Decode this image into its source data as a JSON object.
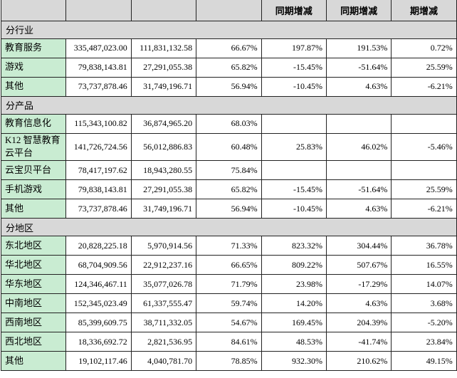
{
  "table": {
    "title": "revenue-breakdown-table",
    "header_cols": [
      "",
      "",
      "",
      "",
      "同期增减",
      "同期增减",
      "期增减"
    ],
    "colors": {
      "header_bg": "#d8d8d8",
      "section_bg": "#d8d8d8",
      "label_bg": "#c9ecd2",
      "border": "#222222"
    },
    "sections": [
      {
        "title": "分行业",
        "rows": [
          {
            "label": "教育服务",
            "values": [
              "335,487,023.00",
              "111,831,132.58",
              "66.67%",
              "197.87%",
              "191.53%",
              "0.72%"
            ]
          },
          {
            "label": "游戏",
            "values": [
              "79,838,143.81",
              "27,291,055.38",
              "65.82%",
              "-15.45%",
              "-51.64%",
              "25.59%"
            ]
          },
          {
            "label": "其他",
            "values": [
              "73,737,878.46",
              "31,749,196.71",
              "56.94%",
              "-10.45%",
              "4.63%",
              "-6.21%"
            ]
          }
        ]
      },
      {
        "title": "分产品",
        "rows": [
          {
            "label": "教育信息化",
            "values": [
              "115,343,100.82",
              "36,874,965.20",
              "68.03%",
              "",
              "",
              ""
            ]
          },
          {
            "label": "K12 智慧教育云平台",
            "values": [
              "141,726,724.56",
              "56,012,886.83",
              "60.48%",
              "25.83%",
              "46.02%",
              "-5.46%"
            ]
          },
          {
            "label": "云宝贝平台",
            "values": [
              "78,417,197.62",
              "18,943,280.55",
              "75.84%",
              "",
              "",
              ""
            ]
          },
          {
            "label": "手机游戏",
            "values": [
              "79,838,143.81",
              "27,291,055.38",
              "65.82%",
              "-15.45%",
              "-51.64%",
              "25.59%"
            ]
          },
          {
            "label": "其他",
            "values": [
              "73,737,878.46",
              "31,749,196.71",
              "56.94%",
              "-10.45%",
              "4.63%",
              "-6.21%"
            ]
          }
        ]
      },
      {
        "title": "分地区",
        "rows": [
          {
            "label": "东北地区",
            "values": [
              "20,828,225.18",
              "5,970,914.56",
              "71.33%",
              "823.32%",
              "304.44%",
              "36.78%"
            ]
          },
          {
            "label": "华北地区",
            "values": [
              "68,704,909.56",
              "22,912,237.16",
              "66.65%",
              "809.22%",
              "507.67%",
              "16.55%"
            ]
          },
          {
            "label": "华东地区",
            "values": [
              "124,346,467.11",
              "35,077,026.78",
              "71.79%",
              "23.98%",
              "-17.29%",
              "14.07%"
            ]
          },
          {
            "label": "中南地区",
            "values": [
              "152,345,023.49",
              "61,337,555.47",
              "59.74%",
              "14.20%",
              "4.63%",
              "3.68%"
            ]
          },
          {
            "label": "西南地区",
            "values": [
              "85,399,609.75",
              "38,711,332.05",
              "54.67%",
              "169.45%",
              "204.39%",
              "-5.20%"
            ]
          },
          {
            "label": "西北地区",
            "values": [
              "18,336,692.72",
              "2,821,536.95",
              "84.61%",
              "48.53%",
              "-41.74%",
              "23.84%"
            ]
          },
          {
            "label": "其他",
            "values": [
              "19,102,117.46",
              "4,040,781.70",
              "78.85%",
              "932.30%",
              "210.62%",
              "49.15%"
            ]
          }
        ]
      }
    ]
  }
}
